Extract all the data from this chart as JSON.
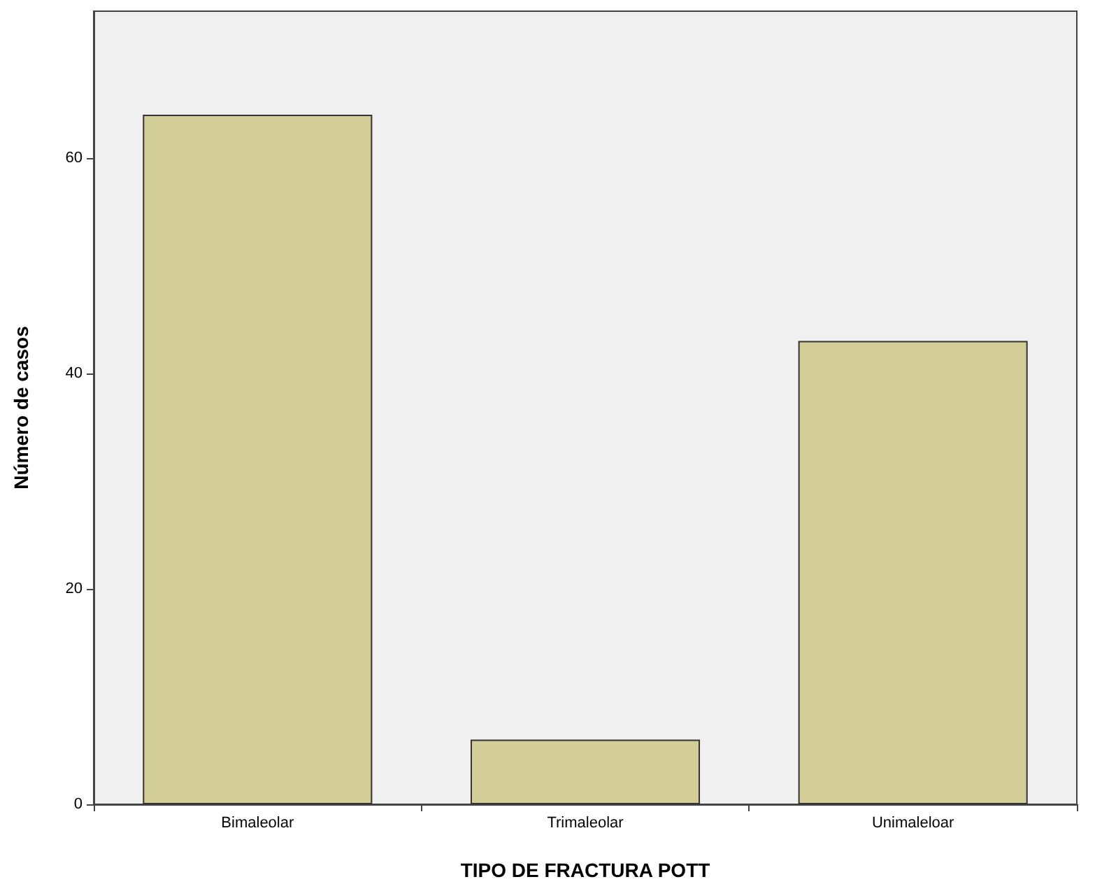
{
  "chart_data": {
    "type": "bar",
    "xlabel": "TIPO DE FRACTURA POTT",
    "ylabel": "Número de casos",
    "categories": [
      "Bimaleolar",
      "Trimaleolar",
      "Unimaleloar"
    ],
    "values": [
      64,
      6,
      43
    ],
    "color": "#d3ce97",
    "ylim": [
      0,
      73.6
    ],
    "yticks": [
      0,
      20,
      40,
      60
    ],
    "grid": false
  }
}
